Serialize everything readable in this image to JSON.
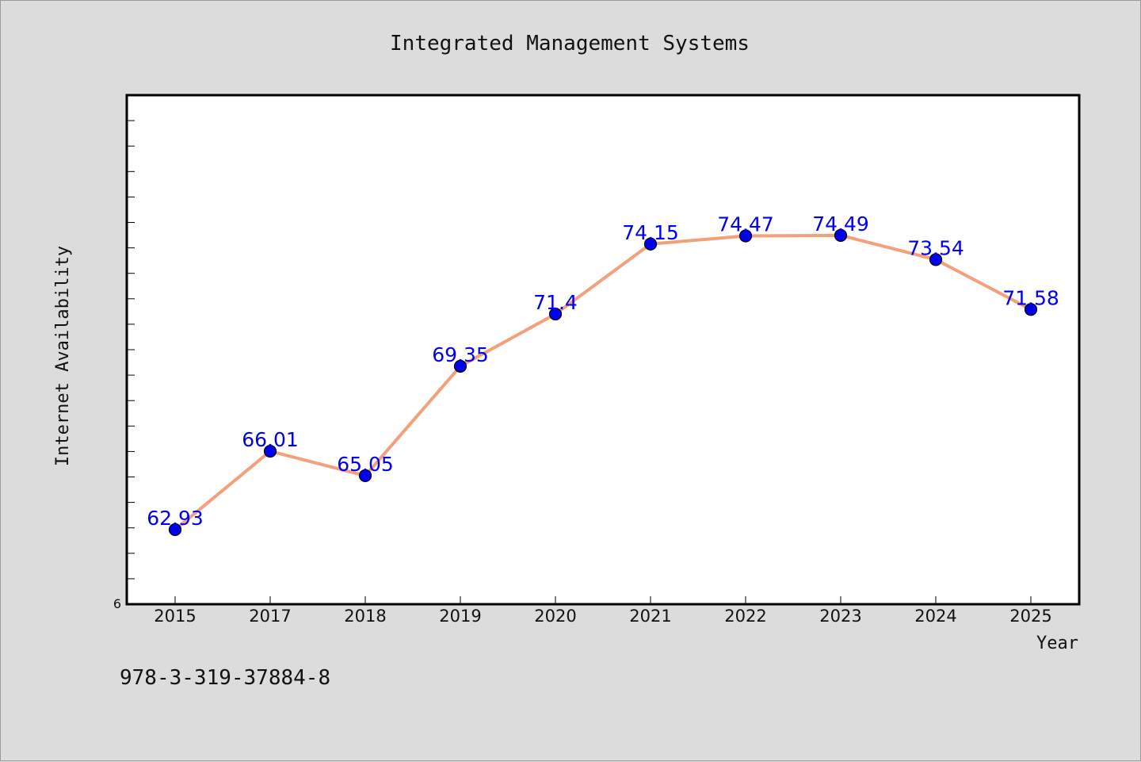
{
  "chart_data": {
    "type": "line",
    "title": "Integrated Management Systems",
    "xlabel": "Year",
    "ylabel": "Internet Availability",
    "categories": [
      "2015",
      "2017",
      "2018",
      "2019",
      "2020",
      "2021",
      "2022",
      "2023",
      "2024",
      "2025"
    ],
    "series": [
      {
        "values": [
          62.93,
          66.01,
          65.05,
          69.35,
          71.4,
          74.15,
          74.47,
          74.49,
          73.54,
          71.58
        ],
        "labels": [
          "62.93",
          "66.01",
          "65.05",
          "69.35",
          "71.4",
          "74.15",
          "74.47",
          "74.49",
          "73.54",
          "71.58"
        ]
      }
    ],
    "ylim": [
      60,
      80
    ],
    "ytick_label": "6",
    "line_color": "#f4a07a",
    "marker_color": "#0000ee",
    "label_color": "#0000ee",
    "grid": false,
    "legend": "none"
  },
  "footnote": "978-3-319-37884-8"
}
